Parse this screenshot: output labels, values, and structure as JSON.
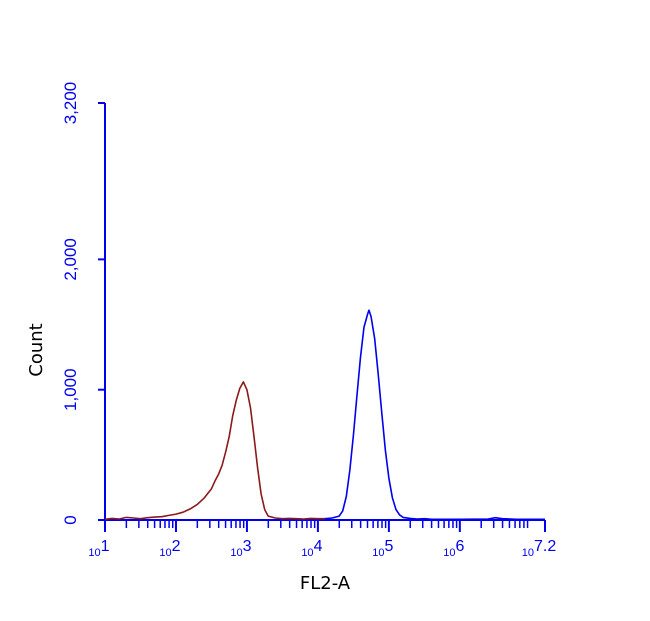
{
  "chart_data": {
    "type": "line",
    "title": "",
    "xlabel": "FL2-A",
    "ylabel": "Count",
    "x_scale": "log10",
    "xlim": [
      1,
      7.2
    ],
    "ylim": [
      0,
      3200
    ],
    "y_ticks": [
      {
        "value": 0,
        "label": "0"
      },
      {
        "value": 1000,
        "label": "1,000"
      },
      {
        "value": 2000,
        "label": "2,000"
      },
      {
        "value": 3200,
        "label": "3,200"
      }
    ],
    "x_ticks": [
      {
        "value": 1,
        "base": "10",
        "exp": "1"
      },
      {
        "value": 2,
        "base": "10",
        "exp": "2"
      },
      {
        "value": 3,
        "base": "10",
        "exp": "3"
      },
      {
        "value": 4,
        "base": "10",
        "exp": "4"
      },
      {
        "value": 5,
        "base": "10",
        "exp": "5"
      },
      {
        "value": 6,
        "base": "10",
        "exp": "6"
      },
      {
        "value": 7.2,
        "base": "10",
        "exp": "7.2"
      }
    ],
    "grid": false,
    "legend": "none",
    "axis_color": "#0000ee",
    "series": [
      {
        "color": "#8b1a1a",
        "points": [
          [
            1.0,
            5
          ],
          [
            1.1,
            12
          ],
          [
            1.2,
            8
          ],
          [
            1.3,
            20
          ],
          [
            1.4,
            15
          ],
          [
            1.5,
            10
          ],
          [
            1.6,
            18
          ],
          [
            1.7,
            22
          ],
          [
            1.8,
            25
          ],
          [
            1.9,
            35
          ],
          [
            2.0,
            45
          ],
          [
            2.1,
            60
          ],
          [
            2.2,
            85
          ],
          [
            2.3,
            120
          ],
          [
            2.4,
            170
          ],
          [
            2.5,
            240
          ],
          [
            2.55,
            300
          ],
          [
            2.6,
            350
          ],
          [
            2.65,
            420
          ],
          [
            2.7,
            520
          ],
          [
            2.75,
            640
          ],
          [
            2.8,
            800
          ],
          [
            2.85,
            920
          ],
          [
            2.9,
            1010
          ],
          [
            2.95,
            1060
          ],
          [
            3.0,
            1000
          ],
          [
            3.05,
            860
          ],
          [
            3.1,
            640
          ],
          [
            3.15,
            400
          ],
          [
            3.2,
            200
          ],
          [
            3.25,
            80
          ],
          [
            3.3,
            30
          ],
          [
            3.4,
            15
          ],
          [
            3.5,
            10
          ],
          [
            3.6,
            12
          ],
          [
            3.7,
            10
          ],
          [
            3.8,
            8
          ],
          [
            3.9,
            12
          ],
          [
            4.0,
            10
          ],
          [
            4.1,
            10
          ]
        ]
      },
      {
        "color": "#0000ee",
        "points": [
          [
            4.1,
            10
          ],
          [
            4.2,
            15
          ],
          [
            4.3,
            30
          ],
          [
            4.35,
            70
          ],
          [
            4.4,
            180
          ],
          [
            4.45,
            380
          ],
          [
            4.5,
            650
          ],
          [
            4.55,
            950
          ],
          [
            4.6,
            1250
          ],
          [
            4.65,
            1480
          ],
          [
            4.7,
            1580
          ],
          [
            4.72,
            1610
          ],
          [
            4.75,
            1560
          ],
          [
            4.8,
            1390
          ],
          [
            4.85,
            1120
          ],
          [
            4.9,
            820
          ],
          [
            4.95,
            540
          ],
          [
            5.0,
            320
          ],
          [
            5.05,
            170
          ],
          [
            5.1,
            80
          ],
          [
            5.15,
            40
          ],
          [
            5.2,
            20
          ],
          [
            5.3,
            12
          ],
          [
            5.4,
            8
          ],
          [
            5.5,
            10
          ],
          [
            5.6,
            5
          ],
          [
            5.8,
            5
          ],
          [
            6.0,
            5
          ],
          [
            6.2,
            6
          ],
          [
            6.4,
            8
          ],
          [
            6.5,
            18
          ],
          [
            6.6,
            10
          ],
          [
            6.8,
            5
          ],
          [
            7.0,
            5
          ],
          [
            7.2,
            5
          ]
        ]
      }
    ]
  }
}
